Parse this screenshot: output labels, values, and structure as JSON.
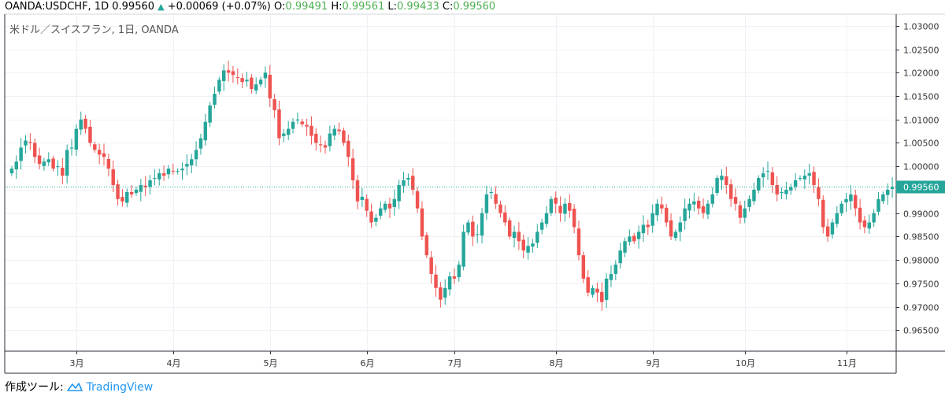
{
  "header": {
    "symbol": "OANDA:USDCHF, 1D",
    "last": "0.99560",
    "change_arrow": "▲",
    "change": "+0.00069 (+0.07%)",
    "o_label": "O:",
    "o": "0.99491",
    "h_label": "H:",
    "h": "0.99561",
    "l_label": "L:",
    "l": "0.99433",
    "c_label": "C:",
    "c": "0.99560"
  },
  "legend": "米ドル／スイスフラン, 1日, OANDA",
  "footer": {
    "created_with": "作成ツール:",
    "brand": "TradingView"
  },
  "colors": {
    "up": "#26a69a",
    "down": "#ef5350",
    "price_line": "#26a69a",
    "grid": "#eef1f5"
  },
  "chart_data": {
    "type": "candlestick",
    "title": "米ドル／スイスフラン, 1日, OANDA",
    "y_axis_ticks": [
      "1.03000",
      "1.02500",
      "1.02000",
      "1.01500",
      "1.01000",
      "1.00500",
      "1.00000",
      "0.99500",
      "0.99000",
      "0.98500",
      "0.98000",
      "0.97500",
      "0.97000",
      "0.96500"
    ],
    "ylim": [
      0.9605,
      1.0325
    ],
    "x_axis_ticks": [
      {
        "label": "3月",
        "index": 14
      },
      {
        "label": "4月",
        "index": 35
      },
      {
        "label": "5月",
        "index": 56
      },
      {
        "label": "6月",
        "index": 77
      },
      {
        "label": "7月",
        "index": 96
      },
      {
        "label": "8月",
        "index": 118
      },
      {
        "label": "9月",
        "index": 139
      },
      {
        "label": "10月",
        "index": 159
      },
      {
        "label": "11月",
        "index": 181
      }
    ],
    "current_price": 0.9956,
    "current_price_label": "0.99560",
    "closes": [
      0.9995,
      1.001,
      1.004,
      1.0055,
      1.005,
      1.002,
      1.0005,
      1.001,
      1.0015,
      0.9995,
      1.0,
      0.998,
      1.0035,
      1.004,
      1.008,
      1.01,
      1.008,
      1.005,
      1.0035,
      1.0025,
      1.002,
      0.9995,
      0.996,
      0.993,
      0.9925,
      0.9945,
      0.994,
      0.995,
      0.996,
      0.9955,
      0.997,
      0.9975,
      0.9985,
      0.998,
      0.9995,
      0.999,
      0.999,
      0.9995,
      1.0005,
      1.0015,
      1.0035,
      1.006,
      1.0095,
      1.013,
      1.0155,
      1.0185,
      1.0205,
      1.02,
      1.0195,
      1.019,
      1.018,
      1.0185,
      1.0165,
      1.0175,
      1.0185,
      1.02,
      1.0145,
      1.012,
      1.006,
      1.007,
      1.008,
      1.0095,
      1.01,
      1.009,
      1.0085,
      1.0065,
      1.005,
      1.0045,
      1.004,
      1.007,
      1.008,
      1.0075,
      1.005,
      1.002,
      0.997,
      0.9925,
      0.9935,
      0.9905,
      0.988,
      0.989,
      0.991,
      0.992,
      0.991,
      0.993,
      0.996,
      0.997,
      0.9975,
      0.995,
      0.991,
      0.985,
      0.981,
      0.977,
      0.974,
      0.9715,
      0.974,
      0.9765,
      0.976,
      0.979,
      0.986,
      0.988,
      0.985,
      0.9855,
      0.99,
      0.994,
      0.9945,
      0.992,
      0.99,
      0.988,
      0.985,
      0.986,
      0.984,
      0.982,
      0.983,
      0.9835,
      0.986,
      0.988,
      0.99,
      0.993,
      0.992,
      0.99,
      0.992,
      0.9905,
      0.987,
      0.981,
      0.976,
      0.973,
      0.974,
      0.973,
      0.971,
      0.976,
      0.977,
      0.979,
      0.982,
      0.984,
      0.985,
      0.984,
      0.986,
      0.9875,
      0.987,
      0.99,
      0.992,
      0.991,
      0.988,
      0.985,
      0.986,
      0.988,
      0.991,
      0.992,
      0.9925,
      0.991,
      0.99,
      0.992,
      0.994,
      0.9975,
      0.998,
      0.996,
      0.993,
      0.992,
      0.989,
      0.991,
      0.993,
      0.995,
      0.9975,
      0.9985,
      0.999,
      0.996,
      0.994,
      0.9945,
      0.995,
      0.9955,
      0.997,
      0.9975,
      0.998,
      0.9985,
      0.996,
      0.993,
      0.987,
      0.985,
      0.988,
      0.99,
      0.992,
      0.993,
      0.994,
      0.991,
      0.988,
      0.987,
      0.988,
      0.99,
      0.993,
      0.994,
      0.995,
      0.9956
    ]
  }
}
